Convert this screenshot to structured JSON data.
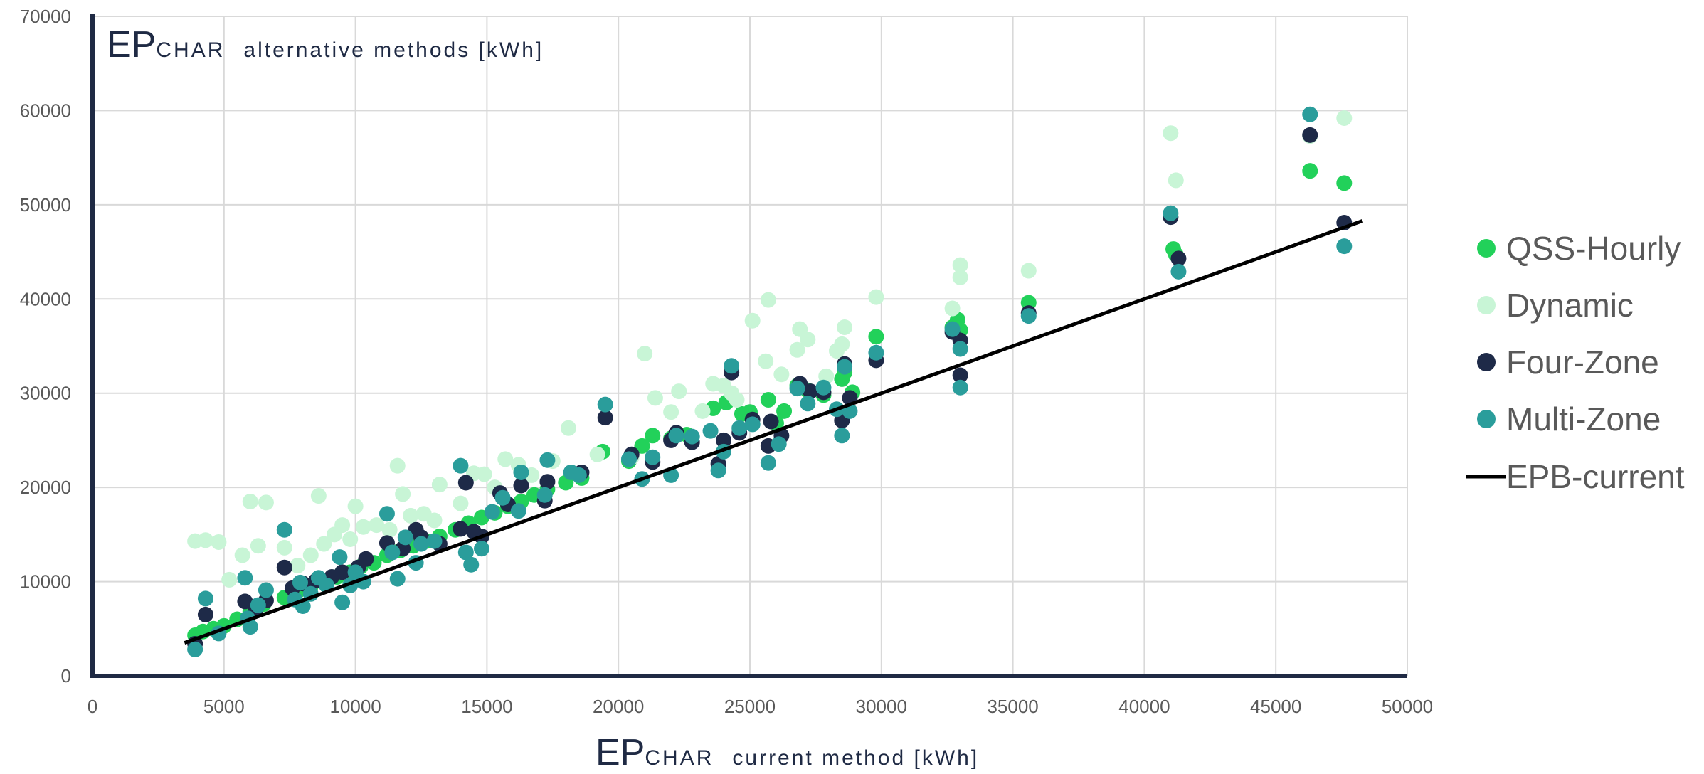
{
  "chart_data": {
    "type": "scatter",
    "y_title": {
      "main": "EP",
      "sub": "CHAR",
      "rest": "alternative methods [kWh]"
    },
    "x_title": {
      "main": "EP",
      "sub": "CHAR",
      "rest": "current method [kWh]"
    },
    "xlim": [
      0,
      50000
    ],
    "ylim": [
      0,
      70000
    ],
    "x_ticks": [
      "0",
      "5000",
      "10000",
      "15000",
      "20000",
      "25000",
      "30000",
      "35000",
      "40000",
      "45000",
      "50000"
    ],
    "y_ticks": [
      "0",
      "10000",
      "20000",
      "30000",
      "40000",
      "50000",
      "60000",
      "70000"
    ],
    "grid": true,
    "legend_position": "right",
    "series": [
      {
        "name": "QSS-Hourly",
        "color": "#22d15a",
        "marker": "circle",
        "points": [
          [
            3900,
            4300
          ],
          [
            4200,
            4700
          ],
          [
            4600,
            5000
          ],
          [
            5000,
            5300
          ],
          [
            5500,
            6000
          ],
          [
            6000,
            6800
          ],
          [
            6500,
            7600
          ],
          [
            7300,
            8300
          ],
          [
            7800,
            9000
          ],
          [
            8300,
            9500
          ],
          [
            8800,
            10000
          ],
          [
            9300,
            10500
          ],
          [
            9800,
            11000
          ],
          [
            10200,
            11600
          ],
          [
            10700,
            12000
          ],
          [
            11200,
            12800
          ],
          [
            11700,
            13300
          ],
          [
            12200,
            13800
          ],
          [
            12700,
            14300
          ],
          [
            13200,
            14800
          ],
          [
            13800,
            15500
          ],
          [
            14300,
            16200
          ],
          [
            14800,
            16800
          ],
          [
            15300,
            17300
          ],
          [
            15800,
            18000
          ],
          [
            16300,
            18500
          ],
          [
            16800,
            19200
          ],
          [
            17300,
            19800
          ],
          [
            18000,
            20500
          ],
          [
            18600,
            21000
          ],
          [
            19400,
            23800
          ],
          [
            20400,
            22800
          ],
          [
            20900,
            24400
          ],
          [
            21300,
            25500
          ],
          [
            22000,
            25200
          ],
          [
            22600,
            25600
          ],
          [
            23600,
            28400
          ],
          [
            24100,
            29000
          ],
          [
            24700,
            27800
          ],
          [
            25000,
            28000
          ],
          [
            25700,
            29300
          ],
          [
            26000,
            26800
          ],
          [
            26300,
            28100
          ],
          [
            26800,
            30800
          ],
          [
            27200,
            30300
          ],
          [
            27800,
            29800
          ],
          [
            28500,
            31500
          ],
          [
            28600,
            32200
          ],
          [
            28900,
            30100
          ],
          [
            29800,
            36000
          ],
          [
            32700,
            37000
          ],
          [
            32900,
            37800
          ],
          [
            33000,
            36700
          ],
          [
            35600,
            39600
          ],
          [
            41100,
            45300
          ],
          [
            41200,
            44700
          ],
          [
            46300,
            53600
          ],
          [
            47600,
            52300
          ]
        ]
      },
      {
        "name": "Dynamic",
        "color": "#c8f5d6",
        "marker": "circle",
        "points": [
          [
            3900,
            14300
          ],
          [
            4300,
            14400
          ],
          [
            4800,
            14200
          ],
          [
            5200,
            10200
          ],
          [
            5700,
            12800
          ],
          [
            6000,
            18500
          ],
          [
            6300,
            13800
          ],
          [
            6600,
            18400
          ],
          [
            7300,
            13600
          ],
          [
            7800,
            11700
          ],
          [
            8300,
            12800
          ],
          [
            8600,
            19100
          ],
          [
            8800,
            14000
          ],
          [
            9200,
            15000
          ],
          [
            9500,
            16000
          ],
          [
            9800,
            14500
          ],
          [
            10000,
            18000
          ],
          [
            10300,
            15800
          ],
          [
            10800,
            16000
          ],
          [
            11300,
            15500
          ],
          [
            11600,
            22300
          ],
          [
            11800,
            19300
          ],
          [
            12100,
            17000
          ],
          [
            12600,
            17200
          ],
          [
            13000,
            16500
          ],
          [
            13200,
            20300
          ],
          [
            14000,
            18300
          ],
          [
            14500,
            21500
          ],
          [
            14900,
            21400
          ],
          [
            15300,
            20000
          ],
          [
            15700,
            23000
          ],
          [
            16200,
            22400
          ],
          [
            16700,
            21300
          ],
          [
            17500,
            22800
          ],
          [
            18100,
            26300
          ],
          [
            19200,
            23500
          ],
          [
            20500,
            23200
          ],
          [
            21000,
            34200
          ],
          [
            21400,
            29500
          ],
          [
            22000,
            28000
          ],
          [
            22300,
            30200
          ],
          [
            23200,
            28100
          ],
          [
            23600,
            31000
          ],
          [
            24000,
            30800
          ],
          [
            24300,
            30000
          ],
          [
            24500,
            29300
          ],
          [
            25100,
            37700
          ],
          [
            25600,
            33400
          ],
          [
            25700,
            39900
          ],
          [
            26200,
            32000
          ],
          [
            26800,
            34600
          ],
          [
            26900,
            36800
          ],
          [
            27200,
            35700
          ],
          [
            27900,
            31800
          ],
          [
            28300,
            34500
          ],
          [
            28500,
            35200
          ],
          [
            28600,
            37000
          ],
          [
            29800,
            40200
          ],
          [
            32700,
            39000
          ],
          [
            33000,
            43600
          ],
          [
            33000,
            42300
          ],
          [
            35600,
            43000
          ],
          [
            41000,
            57600
          ],
          [
            41200,
            52600
          ],
          [
            46300,
            57300
          ],
          [
            47600,
            59200
          ]
        ]
      },
      {
        "name": "Four-Zone",
        "color": "#1e2a48",
        "marker": "circle",
        "points": [
          [
            3900,
            3400
          ],
          [
            4300,
            6500
          ],
          [
            5800,
            7900
          ],
          [
            6200,
            6900
          ],
          [
            6600,
            8000
          ],
          [
            7300,
            11500
          ],
          [
            7600,
            9300
          ],
          [
            8000,
            9800
          ],
          [
            8500,
            10100
          ],
          [
            9100,
            10500
          ],
          [
            9500,
            11000
          ],
          [
            10100,
            11500
          ],
          [
            10400,
            12400
          ],
          [
            11200,
            14100
          ],
          [
            11800,
            13500
          ],
          [
            12300,
            15500
          ],
          [
            12500,
            14700
          ],
          [
            13200,
            14000
          ],
          [
            14000,
            15600
          ],
          [
            14200,
            20500
          ],
          [
            14500,
            15300
          ],
          [
            14800,
            14800
          ],
          [
            15500,
            19400
          ],
          [
            15800,
            18200
          ],
          [
            16300,
            20200
          ],
          [
            17200,
            18600
          ],
          [
            17300,
            20600
          ],
          [
            18600,
            21600
          ],
          [
            19500,
            27400
          ],
          [
            20500,
            23500
          ],
          [
            21300,
            22700
          ],
          [
            22000,
            25000
          ],
          [
            22200,
            25800
          ],
          [
            22800,
            24800
          ],
          [
            23800,
            22500
          ],
          [
            24000,
            25000
          ],
          [
            24300,
            32200
          ],
          [
            24600,
            25800
          ],
          [
            25100,
            27200
          ],
          [
            25700,
            24400
          ],
          [
            25800,
            27000
          ],
          [
            26200,
            25500
          ],
          [
            26900,
            31000
          ],
          [
            27300,
            30200
          ],
          [
            27800,
            30100
          ],
          [
            28500,
            27100
          ],
          [
            28600,
            33100
          ],
          [
            28800,
            29500
          ],
          [
            29800,
            33500
          ],
          [
            32700,
            36500
          ],
          [
            33000,
            35600
          ],
          [
            33000,
            31900
          ],
          [
            35600,
            38500
          ],
          [
            41000,
            48700
          ],
          [
            41300,
            44300
          ],
          [
            46300,
            57400
          ],
          [
            47600,
            48100
          ]
        ]
      },
      {
        "name": "Multi-Zone",
        "color": "#2a9d9b",
        "marker": "circle",
        "points": [
          [
            3900,
            2800
          ],
          [
            4300,
            8200
          ],
          [
            4800,
            4500
          ],
          [
            5800,
            10400
          ],
          [
            5900,
            6100
          ],
          [
            6000,
            5200
          ],
          [
            6300,
            7500
          ],
          [
            6600,
            9100
          ],
          [
            7300,
            15500
          ],
          [
            7700,
            8100
          ],
          [
            7900,
            9900
          ],
          [
            8000,
            7400
          ],
          [
            8300,
            8700
          ],
          [
            8600,
            10400
          ],
          [
            8900,
            9600
          ],
          [
            9400,
            12600
          ],
          [
            9500,
            7800
          ],
          [
            9800,
            9600
          ],
          [
            10000,
            11000
          ],
          [
            10300,
            10000
          ],
          [
            11200,
            17200
          ],
          [
            11400,
            13100
          ],
          [
            11600,
            10300
          ],
          [
            11900,
            14700
          ],
          [
            12300,
            12000
          ],
          [
            12500,
            14000
          ],
          [
            13000,
            14300
          ],
          [
            14000,
            22300
          ],
          [
            14200,
            13100
          ],
          [
            14400,
            11800
          ],
          [
            14800,
            13500
          ],
          [
            15200,
            17400
          ],
          [
            15600,
            18900
          ],
          [
            16200,
            17500
          ],
          [
            16300,
            21600
          ],
          [
            17200,
            19200
          ],
          [
            17300,
            22900
          ],
          [
            18200,
            21600
          ],
          [
            18500,
            21300
          ],
          [
            19500,
            28800
          ],
          [
            20400,
            23000
          ],
          [
            20900,
            20900
          ],
          [
            21300,
            23200
          ],
          [
            22000,
            21300
          ],
          [
            22200,
            25500
          ],
          [
            22800,
            25400
          ],
          [
            23500,
            26000
          ],
          [
            23800,
            21800
          ],
          [
            24000,
            23800
          ],
          [
            24300,
            32900
          ],
          [
            24600,
            26300
          ],
          [
            25100,
            26700
          ],
          [
            25700,
            22600
          ],
          [
            26100,
            24600
          ],
          [
            26800,
            30500
          ],
          [
            27200,
            28900
          ],
          [
            27800,
            30600
          ],
          [
            28300,
            28300
          ],
          [
            28500,
            25500
          ],
          [
            28600,
            32800
          ],
          [
            28800,
            28100
          ],
          [
            29800,
            34300
          ],
          [
            32700,
            36800
          ],
          [
            33000,
            34700
          ],
          [
            33000,
            30600
          ],
          [
            35600,
            38200
          ],
          [
            41000,
            49100
          ],
          [
            41300,
            42900
          ],
          [
            46300,
            59600
          ],
          [
            47600,
            45600
          ]
        ]
      },
      {
        "name": "EPB-current",
        "color": "#000000",
        "marker": "line",
        "points": [
          [
            3500,
            3500
          ],
          [
            48300,
            48300
          ]
        ]
      }
    ]
  }
}
